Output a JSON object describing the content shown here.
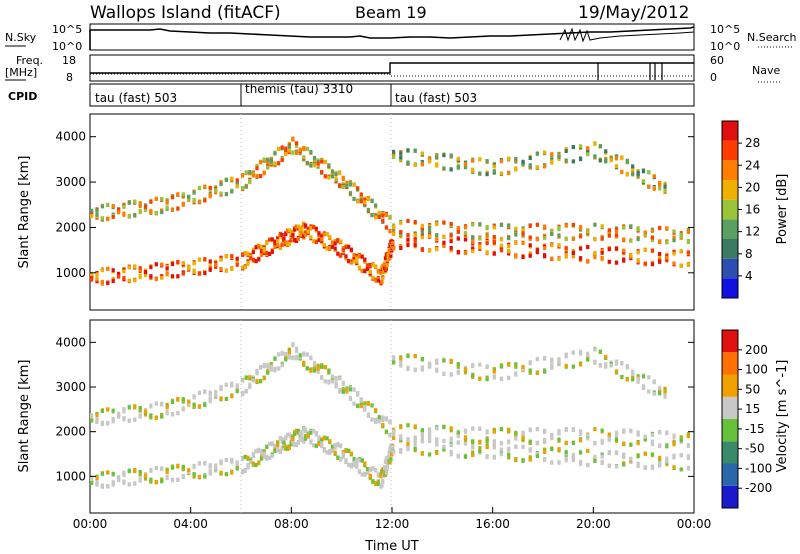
{
  "header": {
    "station": "Wallops Island (fitACF)",
    "beam": "Beam 19",
    "date": "19/May/2012"
  },
  "strip_labels": {
    "nsky": "N.Sky",
    "nsky_ticks": [
      "10^5",
      "10^0"
    ],
    "nsearch": "N.Search",
    "nsearch_ticks": [
      "10^5",
      "10^0"
    ],
    "freq_line1": "Freq.",
    "freq_line2": "[MHz]",
    "freq_ticks": [
      "18",
      "8"
    ],
    "nave": "Nave",
    "nave_ticks": [
      "60",
      "0"
    ],
    "cpid": "CPID"
  },
  "cpid_segments": [
    {
      "label": "tau (fast) 503",
      "start_hour": 0,
      "end_hour": 6
    },
    {
      "label": "themis (tau) 3310",
      "start_hour": 6,
      "end_hour": 12
    },
    {
      "label": "tau (fast) 503",
      "start_hour": 12,
      "end_hour": 24
    }
  ],
  "x_axis": {
    "label": "Time UT",
    "ticks": [
      "00:00",
      "04:00",
      "08:00",
      "12:00",
      "16:00",
      "20:00",
      "00:00"
    ]
  },
  "chart_data": [
    {
      "type": "heatmap",
      "panel": "power",
      "xlabel": "Time UT",
      "ylabel": "Slant Range [km]",
      "xlim": [
        0,
        24
      ],
      "ylim": [
        180,
        4500
      ],
      "yticks": [
        "1000",
        "2000",
        "3000",
        "4000"
      ],
      "colorbar_label": "Power [dB]",
      "colorbar_ticks": [
        "4",
        "8",
        "12",
        "16",
        "20",
        "24",
        "28"
      ],
      "colorbar_range": [
        0,
        32
      ],
      "colors": [
        "#1010e0",
        "#2a4fb0",
        "#3b7a62",
        "#5aa060",
        "#9ac43a",
        "#f0b000",
        "#ff7d00",
        "#ff3b00",
        "#e01010"
      ],
      "features": [
        {
          "name": "lower band",
          "points": [
            [
              0,
              900
            ],
            [
              3,
              1050
            ],
            [
              6,
              1250
            ],
            [
              7.5,
              1700
            ],
            [
              8.5,
              1950
            ],
            [
              10,
              1500
            ],
            [
              11.5,
              900
            ],
            [
              12,
              1700
            ],
            [
              16,
              1550
            ],
            [
              20,
              1400
            ],
            [
              24,
              1300
            ]
          ],
          "power": 26
        },
        {
          "name": "upper band",
          "points": [
            [
              0,
              2300
            ],
            [
              3,
              2500
            ],
            [
              6,
              3000
            ],
            [
              8,
              3800
            ],
            [
              10,
              3000
            ],
            [
              12,
              2000
            ],
            [
              16,
              1900
            ],
            [
              20,
              1900
            ],
            [
              24,
              1800
            ]
          ],
          "power": 20
        },
        {
          "name": "high range scatter",
          "points": [
            [
              12,
              3600
            ],
            [
              16,
              3300
            ],
            [
              20,
              3700
            ],
            [
              23,
              2800
            ]
          ],
          "power": 16
        }
      ]
    },
    {
      "type": "heatmap",
      "panel": "velocity",
      "xlabel": "Time UT",
      "ylabel": "Slant Range [km]",
      "xlim": [
        0,
        24
      ],
      "ylim": [
        180,
        4500
      ],
      "yticks": [
        "1000",
        "2000",
        "3000",
        "4000"
      ],
      "colorbar_label": "Velocity [m s^-1]",
      "colorbar_ticks": [
        "200",
        "100",
        "50",
        "15",
        "-15",
        "-50",
        "-100",
        "-200"
      ],
      "colorbar_range": [
        -250,
        250
      ],
      "colors": [
        "#1a1acc",
        "#2a66aa",
        "#3a8a6a",
        "#66c23a",
        "#c8c8c8",
        "#f0a000",
        "#ff7000",
        "#e01010"
      ],
      "features": [
        {
          "name": "lower band",
          "points": [
            [
              0,
              900
            ],
            [
              3,
              1050
            ],
            [
              6,
              1250
            ],
            [
              7.5,
              1700
            ],
            [
              8.5,
              1950
            ],
            [
              10,
              1500
            ],
            [
              11.5,
              900
            ],
            [
              12,
              1700
            ],
            [
              16,
              1550
            ],
            [
              20,
              1400
            ],
            [
              24,
              1300
            ]
          ],
          "velocity": 0
        },
        {
          "name": "upper band",
          "points": [
            [
              0,
              2300
            ],
            [
              3,
              2500
            ],
            [
              6,
              3000
            ],
            [
              8,
              3800
            ],
            [
              10,
              3000
            ],
            [
              12,
              2000
            ],
            [
              16,
              1900
            ],
            [
              20,
              1900
            ],
            [
              24,
              1800
            ]
          ],
          "velocity": 0
        },
        {
          "name": "high range scatter",
          "points": [
            [
              12,
              3600
            ],
            [
              16,
              3300
            ],
            [
              20,
              3700
            ],
            [
              23,
              2800
            ]
          ],
          "velocity": 0
        }
      ]
    }
  ]
}
